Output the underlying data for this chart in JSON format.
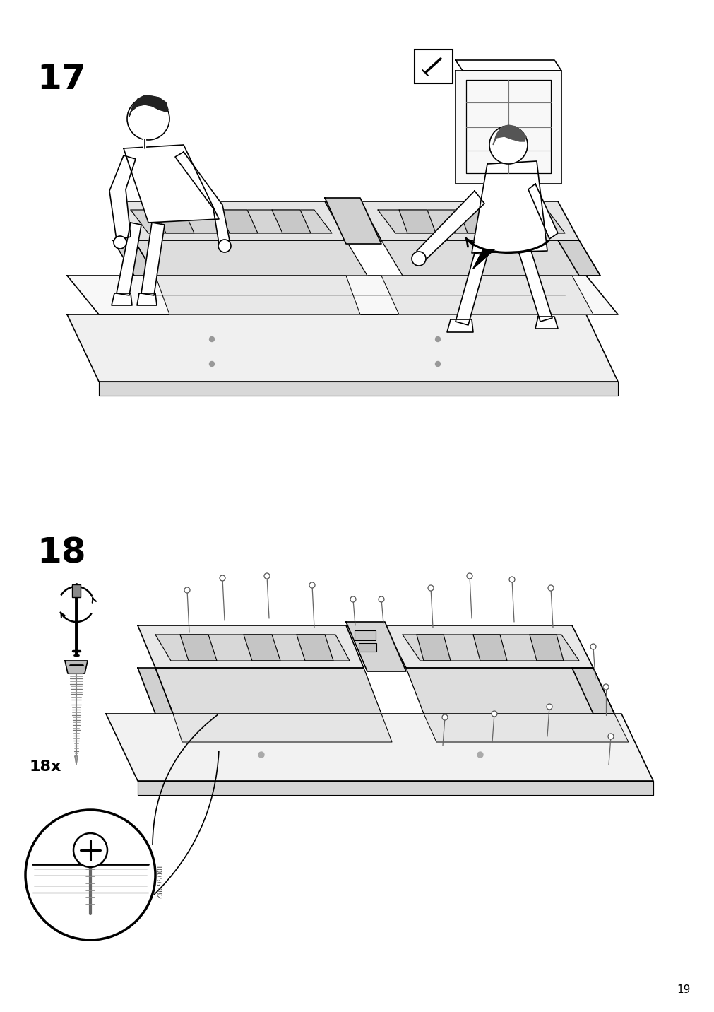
{
  "page_number": "19",
  "step17_label": "17",
  "step18_label": "18",
  "quantity_label": "18x",
  "part_code": "10056782",
  "background_color": "#ffffff",
  "line_color": "#000000",
  "step_label_fontsize": 36,
  "page_num_fontsize": 11,
  "qty_fontsize": 16,
  "partcode_fontsize": 7,
  "fig_width": 10.12,
  "fig_height": 14.32,
  "dpi": 100
}
